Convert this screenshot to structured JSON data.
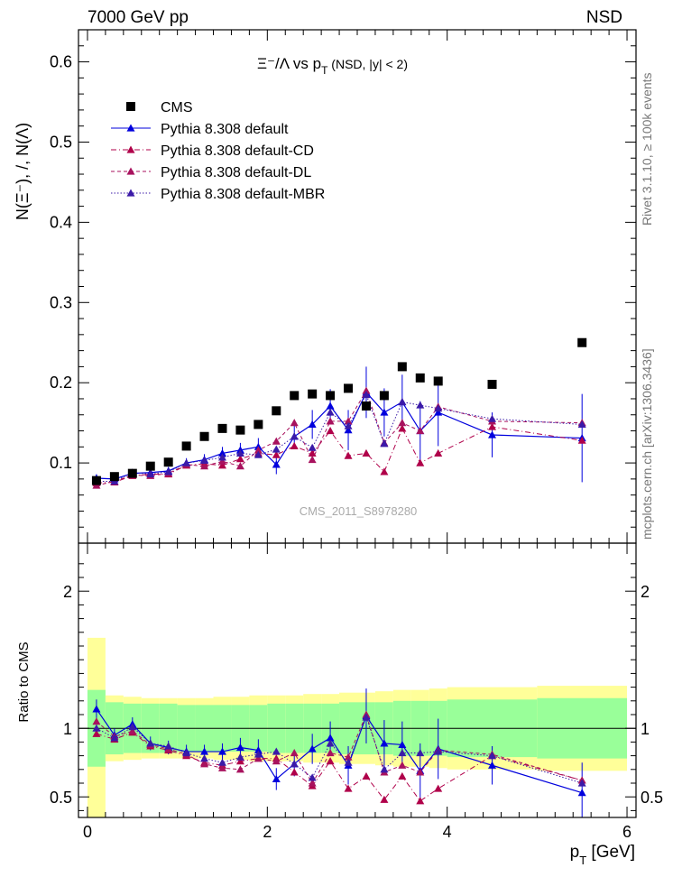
{
  "header": {
    "left": "7000 GeV pp",
    "right": "NSD",
    "side_rivet": "Rivet 3.1.10, ≥ 100k events",
    "side_mcplots": "mcplots.cern.ch [arXiv:1306.3436]",
    "watermark": "CMS_2011_S8978280"
  },
  "colors": {
    "cms": "#000000",
    "default": "#0000dd",
    "cd": "#b0004a",
    "dl": "#a8125e",
    "mbr": "#3b1aa8",
    "band_yellow": "#ffff99",
    "band_green": "#99ff99"
  },
  "chart_data": [
    {
      "type": "scatter",
      "title": "Ξ⁻/Λ  vs p_T (NSD, |y| < 2)",
      "title_parts": {
        "main": "Ξ⁻/Λ  vs p",
        "sub": "T",
        "tail": " (NSD, |y| < 2)"
      },
      "ylabel": "N(Ξ⁻), /, N(Λ)",
      "ylim": [
        0,
        0.64
      ],
      "xlim": [
        -0.1,
        6.1
      ],
      "yticks": [
        0.1,
        0.2,
        0.3,
        0.4,
        0.5,
        0.6
      ],
      "ytick_labels": [
        "0.1",
        "0.2",
        "0.3",
        "0.4",
        "0.5",
        "0.6"
      ],
      "legend_position": "top-left",
      "x": [
        0.1,
        0.3,
        0.5,
        0.7,
        0.9,
        1.1,
        1.3,
        1.5,
        1.7,
        1.9,
        2.1,
        2.3,
        2.5,
        2.7,
        2.9,
        3.1,
        3.3,
        3.5,
        3.7,
        3.9,
        4.5,
        5.5
      ],
      "series": [
        {
          "name": "CMS",
          "key": "cms",
          "style": "marker",
          "values": [
            0.078,
            0.083,
            0.087,
            0.096,
            0.101,
            0.121,
            0.133,
            0.143,
            0.141,
            0.148,
            0.165,
            0.184,
            0.186,
            0.184,
            0.193,
            0.171,
            0.184,
            0.22,
            0.206,
            0.202,
            0.198,
            0.25
          ]
        },
        {
          "name": "Pythia 8.308 default",
          "key": "default",
          "style": "solid",
          "values": [
            0.081,
            0.08,
            0.087,
            0.088,
            0.09,
            0.1,
            0.104,
            0.112,
            0.116,
            0.12,
            0.098,
            0.133,
            0.148,
            0.171,
            0.141,
            0.188,
            0.163,
            0.176,
            0.14,
            0.163,
            0.135,
            0.131
          ],
          "errors": [
            0.005,
            0.004,
            0.004,
            0.004,
            0.005,
            0.006,
            0.007,
            0.008,
            0.009,
            0.011,
            0.012,
            0.015,
            0.018,
            0.021,
            0.025,
            0.032,
            0.03,
            0.034,
            0.037,
            0.042,
            0.028,
            0.055
          ]
        },
        {
          "name": "Pythia 8.308 default-CD",
          "key": "cd",
          "style": "dashdot",
          "values": [
            0.075,
            0.076,
            0.084,
            0.086,
            0.086,
            0.097,
            0.099,
            0.097,
            0.105,
            0.112,
            0.11,
            0.121,
            0.112,
            0.14,
            0.109,
            0.112,
            0.089,
            0.143,
            0.1,
            0.112,
            0.145,
            0.128
          ]
        },
        {
          "name": "Pythia 8.308 default-DL",
          "key": "dl",
          "style": "dashed",
          "values": [
            0.072,
            0.077,
            0.085,
            0.084,
            0.087,
            0.098,
            0.096,
            0.102,
            0.096,
            0.116,
            0.127,
            0.15,
            0.104,
            0.152,
            0.152,
            0.19,
            0.125,
            0.15,
            0.14,
            0.17,
            0.152,
            0.15
          ]
        },
        {
          "name": "Pythia 8.308 default-MBR",
          "key": "mbr",
          "style": "dotted",
          "values": [
            0.077,
            0.077,
            0.088,
            0.086,
            0.089,
            0.1,
            0.103,
            0.107,
            0.112,
            0.11,
            0.117,
            0.133,
            0.119,
            0.163,
            0.146,
            0.185,
            0.124,
            0.176,
            0.172,
            0.168,
            0.155,
            0.148
          ]
        }
      ]
    },
    {
      "type": "scatter",
      "ylabel": "Ratio to CMS",
      "xlabel": "p_T [GeV]",
      "xlabel_parts": {
        "main": "p",
        "sub": "T",
        "tail": " [GeV]"
      },
      "ylim": [
        0.35,
        2.35
      ],
      "xlim": [
        -0.1,
        6.1
      ],
      "xticks": [
        0,
        2,
        4,
        6
      ],
      "xtick_labels": [
        "0",
        "2",
        "4",
        "6"
      ],
      "yticks": [
        0.5,
        1,
        2
      ],
      "ytick_labels": [
        "0.5",
        "1",
        "2"
      ],
      "bins": [
        [
          0.0,
          0.2
        ],
        [
          0.2,
          0.4
        ],
        [
          0.4,
          0.6
        ],
        [
          0.6,
          0.8
        ],
        [
          0.8,
          1.0
        ],
        [
          1.0,
          1.2
        ],
        [
          1.2,
          1.4
        ],
        [
          1.4,
          1.6
        ],
        [
          1.6,
          1.8
        ],
        [
          1.8,
          2.0
        ],
        [
          2.0,
          2.2
        ],
        [
          2.2,
          2.4
        ],
        [
          2.4,
          2.6
        ],
        [
          2.6,
          2.8
        ],
        [
          2.8,
          3.0
        ],
        [
          3.0,
          3.2
        ],
        [
          3.2,
          3.4
        ],
        [
          3.4,
          3.6
        ],
        [
          3.6,
          3.8
        ],
        [
          3.8,
          4.0
        ],
        [
          4.0,
          5.0
        ],
        [
          5.0,
          6.0
        ]
      ],
      "band_inner": [
        0.28,
        0.19,
        0.18,
        0.18,
        0.18,
        0.17,
        0.17,
        0.17,
        0.17,
        0.17,
        0.18,
        0.18,
        0.18,
        0.18,
        0.19,
        0.19,
        0.19,
        0.2,
        0.2,
        0.2,
        0.21,
        0.22
      ],
      "band_outer": [
        0.66,
        0.24,
        0.23,
        0.22,
        0.22,
        0.22,
        0.22,
        0.23,
        0.23,
        0.24,
        0.24,
        0.24,
        0.25,
        0.25,
        0.26,
        0.26,
        0.27,
        0.28,
        0.28,
        0.29,
        0.3,
        0.31
      ],
      "series": [
        {
          "name": "Pythia 8.308 default",
          "key": "default",
          "style": "solid",
          "values": [
            1.14,
            0.95,
            1.03,
            0.89,
            0.86,
            0.83,
            0.83,
            0.83,
            0.86,
            0.84,
            0.63,
            0.74,
            0.85,
            0.93,
            0.73,
            1.09,
            0.89,
            0.88,
            0.69,
            0.85,
            0.73,
            0.53
          ],
          "errors": [
            0.07,
            0.05,
            0.05,
            0.05,
            0.05,
            0.05,
            0.05,
            0.06,
            0.07,
            0.08,
            0.08,
            0.09,
            0.11,
            0.12,
            0.14,
            0.2,
            0.17,
            0.17,
            0.2,
            0.22,
            0.14,
            0.22
          ]
        },
        {
          "name": "Pythia 8.308 default-CD",
          "key": "cd",
          "style": "dashdot",
          "values": [
            0.96,
            0.92,
            0.97,
            0.87,
            0.84,
            0.8,
            0.75,
            0.73,
            0.76,
            0.78,
            0.78,
            0.68,
            0.58,
            0.76,
            0.56,
            0.65,
            0.48,
            0.65,
            0.47,
            0.56,
            0.8,
            0.62
          ]
        },
        {
          "name": "Pythia 8.308 default-DL",
          "key": "dl",
          "style": "dashed",
          "values": [
            1.05,
            0.94,
            0.98,
            0.88,
            0.85,
            0.81,
            0.74,
            0.71,
            0.7,
            0.78,
            0.76,
            0.82,
            0.6,
            0.82,
            0.79,
            1.1,
            0.68,
            0.73,
            0.68,
            0.84,
            0.81,
            0.62
          ]
        },
        {
          "name": "Pythia 8.308 default-MBR",
          "key": "mbr",
          "style": "dotted",
          "values": [
            1.0,
            0.93,
            1.01,
            0.89,
            0.87,
            0.82,
            0.78,
            0.75,
            0.79,
            0.81,
            0.83,
            0.74,
            0.64,
            0.89,
            0.75,
            1.08,
            0.7,
            0.82,
            0.82,
            0.83,
            0.8,
            0.6
          ]
        }
      ]
    }
  ]
}
